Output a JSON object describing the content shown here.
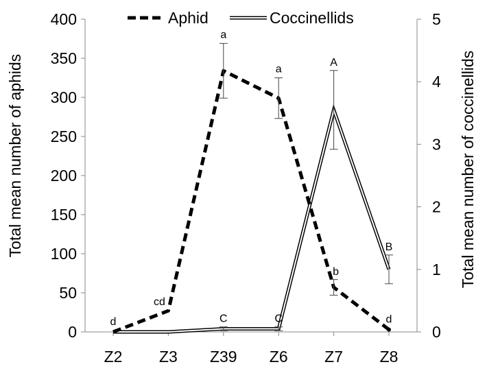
{
  "chart_data": {
    "type": "line",
    "categories": [
      "Z2",
      "Z3",
      "Z39",
      "Z6",
      "Z7",
      "Z8"
    ],
    "y_left": {
      "label": "Total mean number of aphids",
      "lim": [
        0,
        400
      ],
      "ticks": [
        "0",
        "50",
        "100",
        "150",
        "200",
        "250",
        "300",
        "350",
        "400"
      ]
    },
    "y_right": {
      "label": "Total mean number of coccinellids",
      "lim": [
        0,
        5
      ],
      "ticks": [
        "0",
        "1",
        "2",
        "3",
        "4",
        "5"
      ]
    },
    "legend": {
      "position": "top",
      "entries": [
        "Aphid",
        "Coccinellids"
      ]
    },
    "series": [
      {
        "name": "Aphid",
        "axis": "left",
        "style": "dashed",
        "values": [
          0,
          27,
          334,
          299,
          57,
          3
        ],
        "error": [
          0,
          0,
          35,
          26,
          10,
          0
        ],
        "labels": [
          "d",
          "cd",
          "a",
          "a",
          "b",
          "d"
        ]
      },
      {
        "name": "Coccinellids",
        "axis": "right",
        "style": "double",
        "values": [
          0,
          0,
          0.05,
          0.05,
          3.55,
          1.0
        ],
        "error": [
          0,
          0,
          0.03,
          0.03,
          0.63,
          0.23
        ],
        "labels": [
          "",
          "",
          "C",
          "C",
          "A",
          "B"
        ]
      }
    ],
    "grid": false
  }
}
